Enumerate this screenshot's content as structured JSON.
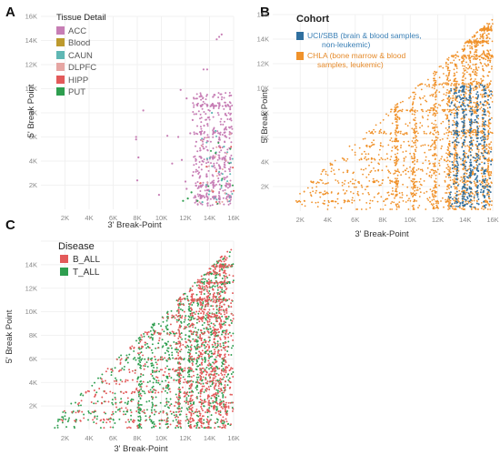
{
  "chart_data": [
    {
      "panel": "A",
      "type": "scatter",
      "xlabel": "3' Break-Point",
      "ylabel": "5' Break Point",
      "xlim": [
        0,
        16000
      ],
      "ylim": [
        0,
        16000
      ],
      "xticks": [
        "2K",
        "4K",
        "6K",
        "8K",
        "10K",
        "12K",
        "14K",
        "16K"
      ],
      "yticks": [
        "2K",
        "4K",
        "6K",
        "8K",
        "10K",
        "12K",
        "14K",
        "16K"
      ],
      "grid": true,
      "legend": {
        "title": "Tissue Detail",
        "placement": "top-left"
      },
      "series": [
        {
          "name": "ACC",
          "color": "#c77eb5",
          "count": 520,
          "points": [
            [
              8500,
              8200
            ],
            [
              7900,
              6000
            ],
            [
              7900,
              5800
            ],
            [
              8100,
              4300
            ],
            [
              8000,
              2400
            ],
            [
              14800,
              14300
            ],
            [
              14600,
              14100
            ],
            [
              15000,
              14500
            ],
            [
              13500,
              11600
            ],
            [
              12100,
              9200
            ],
            [
              11600,
              9900
            ],
            [
              12600,
              7400
            ],
            [
              12900,
              7900
            ],
            [
              12400,
              6300
            ],
            [
              11400,
              6000
            ],
            [
              10500,
              6100
            ],
            [
              12900,
              5600
            ],
            [
              13500,
              5800
            ],
            [
              13400,
              4000
            ],
            [
              11700,
              4100
            ],
            [
              10900,
              3800
            ],
            [
              13800,
              11600
            ],
            [
              14400,
              9500
            ],
            [
              12600,
              2800
            ],
            [
              12000,
              2300
            ],
            [
              13100,
              1800
            ],
            [
              13200,
              1200
            ],
            [
              9800,
              1200
            ],
            [
              12100,
              1700
            ],
            [
              12800,
              1100
            ]
          ]
        },
        {
          "name": "Blood",
          "color": "#bd9a2e",
          "count": 0,
          "points": []
        },
        {
          "name": "CAUN",
          "color": "#5fb7b4",
          "count": 30,
          "points": [
            [
              14200,
              8000
            ],
            [
              14500,
              6500
            ],
            [
              13800,
              4200
            ],
            [
              15000,
              2400
            ],
            [
              15400,
              1300
            ],
            [
              14600,
              800
            ],
            [
              13400,
              600
            ],
            [
              14800,
              3100
            ],
            [
              15200,
              5200
            ],
            [
              14000,
              1500
            ]
          ]
        },
        {
          "name": "DLPFC",
          "color": "#e6a6a3",
          "count": 20,
          "points": []
        },
        {
          "name": "HIPP",
          "color": "#e35a5a",
          "count": 10,
          "points": []
        },
        {
          "name": "PUT",
          "color": "#2e9e4f",
          "count": 14,
          "points": [
            [
              12200,
              900
            ],
            [
              11800,
              700
            ],
            [
              12500,
              1400
            ],
            [
              13000,
              700
            ]
          ]
        }
      ]
    },
    {
      "panel": "B",
      "type": "scatter",
      "xlabel": "3' Break-Point",
      "ylabel": "5' Break Point",
      "xlim": [
        0,
        16000
      ],
      "ylim": [
        0,
        16000
      ],
      "xticks": [
        "2K",
        "4K",
        "6K",
        "8K",
        "10K",
        "12K",
        "14K",
        "16K"
      ],
      "yticks": [
        "2K",
        "4K",
        "6K",
        "8K",
        "10K",
        "12K",
        "14K",
        "16K"
      ],
      "grid": true,
      "legend": {
        "title": "Cohort",
        "placement": "top-left"
      },
      "series": [
        {
          "name": "UCI/SBB (brain & blood samples, non-leukemic)",
          "color": "#2f6f9f",
          "count": 520
        },
        {
          "name": "CHLA (bone marrow & blood samples, leukemic)",
          "color": "#f0922b",
          "count": 2300
        }
      ]
    },
    {
      "panel": "C",
      "type": "scatter",
      "xlabel": "3' Break-Point",
      "ylabel": "5' Break Point",
      "xlim": [
        0,
        16000
      ],
      "ylim": [
        0,
        16000
      ],
      "xticks": [
        "2K",
        "4K",
        "6K",
        "8K",
        "10K",
        "12K",
        "14K",
        "16K"
      ],
      "yticks": [
        "2K",
        "4K",
        "6K",
        "8K",
        "10K",
        "12K",
        "14K"
      ],
      "grid": true,
      "legend": {
        "title": "Disease",
        "placement": "top-left"
      },
      "series": [
        {
          "name": "B_ALL",
          "color": "#e35a5a",
          "count": 1300
        },
        {
          "name": "T_ALL",
          "color": "#2e9e4f",
          "count": 1100
        }
      ]
    }
  ],
  "panel_labels": {
    "a": "A",
    "b": "B",
    "c": "C"
  },
  "legend_a": {
    "title": "Tissue Detail",
    "items": [
      "ACC",
      "Blood",
      "CAUN",
      "DLPFC",
      "HIPP",
      "PUT"
    ]
  },
  "legend_b": {
    "title": "Cohort",
    "item1_line1": "UCI/SBB (brain & blood samples,",
    "item1_line2": "non-leukemic)",
    "item2_line1": "CHLA (bone marrow & blood",
    "item2_line2": "samples, leukemic)"
  },
  "legend_c": {
    "title": "Disease",
    "items": [
      "B_ALL",
      "T_ALL"
    ]
  },
  "axis_titles": {
    "x": "3' Break-Point",
    "y": "5' Break Point"
  }
}
